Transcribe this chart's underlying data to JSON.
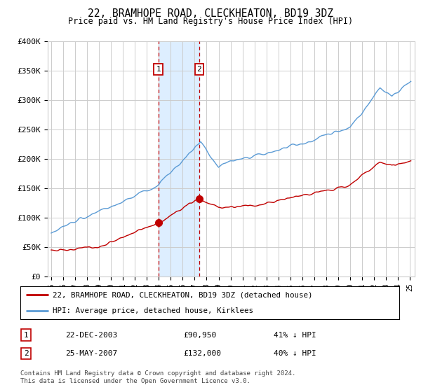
{
  "title": "22, BRAMHOPE ROAD, CLECKHEATON, BD19 3DZ",
  "subtitle": "Price paid vs. HM Land Registry's House Price Index (HPI)",
  "ylim": [
    0,
    400000
  ],
  "yticks": [
    0,
    50000,
    100000,
    150000,
    200000,
    250000,
    300000,
    350000,
    400000
  ],
  "ytick_labels": [
    "£0",
    "£50K",
    "£100K",
    "£150K",
    "£200K",
    "£250K",
    "£300K",
    "£350K",
    "£400K"
  ],
  "hpi_color": "#5b9bd5",
  "price_color": "#c00000",
  "marker1_x": 2003.96,
  "marker2_x": 2007.37,
  "marker1_price": 90950,
  "marker2_price": 132000,
  "sale1_label": "22-DEC-2003",
  "sale1_price_str": "£90,950",
  "sale1_hpi_str": "41% ↓ HPI",
  "sale2_label": "25-MAY-2007",
  "sale2_price_str": "£132,000",
  "sale2_hpi_str": "40% ↓ HPI",
  "legend_line1": "22, BRAMHOPE ROAD, CLECKHEATON, BD19 3DZ (detached house)",
  "legend_line2": "HPI: Average price, detached house, Kirklees",
  "footer": "Contains HM Land Registry data © Crown copyright and database right 2024.\nThis data is licensed under the Open Government Licence v3.0.",
  "background_color": "#ffffff",
  "grid_color": "#cccccc",
  "shade_color": "#ddeeff"
}
